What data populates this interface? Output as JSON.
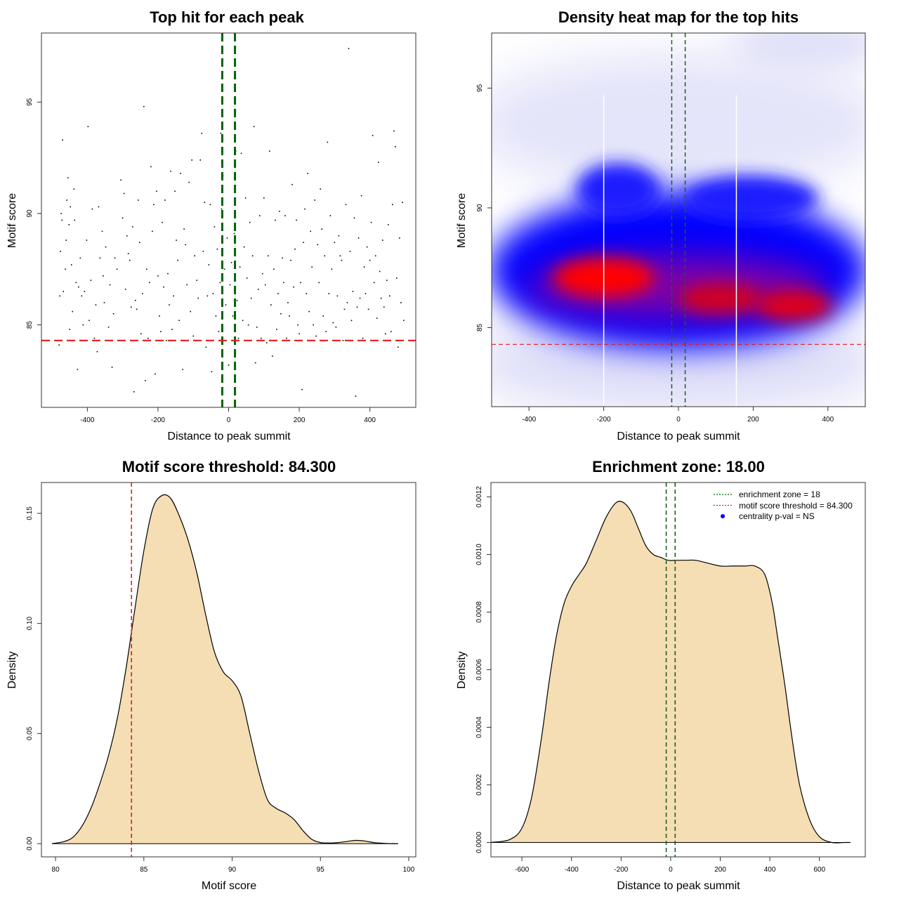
{
  "chart_data": [
    {
      "type": "scatter",
      "title": "Top hit for each peak",
      "xlabel": "Distance to peak summit",
      "ylabel": "Motif score",
      "xlim": [
        -530,
        530
      ],
      "ylim": [
        81.3,
        98.1
      ],
      "xticks": [
        -400,
        -200,
        0,
        200,
        400
      ],
      "yticks": [
        85,
        90,
        95
      ],
      "xtick_labels": [
        "-400",
        "-200",
        "0",
        "200",
        "400"
      ],
      "ytick_labels": [
        "85",
        "90",
        "95"
      ],
      "vlines": [
        -18,
        18
      ],
      "hline": 84.3,
      "points": [
        [
          -480,
          84.1
        ],
        [
          -478,
          86.3
        ],
        [
          -476,
          88.3
        ],
        [
          -474,
          90.0
        ],
        [
          -472,
          89.7
        ],
        [
          -470,
          93.3
        ],
        [
          -468,
          86.5
        ],
        [
          -462,
          87.5
        ],
        [
          -460,
          88.8
        ],
        [
          -458,
          90.6
        ],
        [
          -455,
          91.6
        ],
        [
          -452,
          89.5
        ],
        [
          -450,
          84.8
        ],
        [
          -448,
          90.3
        ],
        [
          -445,
          87.7
        ],
        [
          -442,
          85.6
        ],
        [
          -438,
          91.1
        ],
        [
          -436,
          89.7
        ],
        [
          -432,
          86.9
        ],
        [
          -428,
          83.0
        ],
        [
          -425,
          86.7
        ],
        [
          -420,
          88.0
        ],
        [
          -416,
          86.3
        ],
        [
          -412,
          85.0
        ],
        [
          -408,
          86.5
        ],
        [
          -402,
          88.8
        ],
        [
          -398,
          93.9
        ],
        [
          -395,
          85.2
        ],
        [
          -390,
          87.0
        ],
        [
          -386,
          90.2
        ],
        [
          -380,
          84.4
        ],
        [
          -376,
          85.9
        ],
        [
          -372,
          83.8
        ],
        [
          -368,
          90.3
        ],
        [
          -364,
          88.0
        ],
        [
          -358,
          89.2
        ],
        [
          -355,
          87.2
        ],
        [
          -352,
          86.0
        ],
        [
          -348,
          88.5
        ],
        [
          -340,
          84.9
        ],
        [
          -336,
          86.8
        ],
        [
          -330,
          83.1
        ],
        [
          -326,
          85.5
        ],
        [
          -322,
          88.0
        ],
        [
          -316,
          87.5
        ],
        [
          -310,
          84.3
        ],
        [
          -305,
          91.5
        ],
        [
          -300,
          89.8
        ],
        [
          -296,
          90.9
        ],
        [
          -292,
          86.6
        ],
        [
          -288,
          89.0
        ],
        [
          -284,
          88.2
        ],
        [
          -280,
          87.9
        ],
        [
          -276,
          85.8
        ],
        [
          -272,
          89.4
        ],
        [
          -268,
          82.0
        ],
        [
          -264,
          86.1
        ],
        [
          -260,
          85.7
        ],
        [
          -256,
          90.6
        ],
        [
          -252,
          88.7
        ],
        [
          -248,
          84.6
        ],
        [
          -244,
          86.4
        ],
        [
          -240,
          94.8
        ],
        [
          -236,
          82.5
        ],
        [
          -232,
          87.5
        ],
        [
          -228,
          84.4
        ],
        [
          -224,
          86.9
        ],
        [
          -220,
          92.1
        ],
        [
          -216,
          89.2
        ],
        [
          -212,
          90.4
        ],
        [
          -208,
          82.8
        ],
        [
          -204,
          91.0
        ],
        [
          -200,
          87.2
        ],
        [
          -196,
          85.4
        ],
        [
          -192,
          84.7
        ],
        [
          -188,
          89.6
        ],
        [
          -184,
          86.7
        ],
        [
          -180,
          90.6
        ],
        [
          -176,
          84.3
        ],
        [
          -172,
          87.3
        ],
        [
          -168,
          85.9
        ],
        [
          -164,
          91.9
        ],
        [
          -160,
          84.8
        ],
        [
          -156,
          86.3
        ],
        [
          -152,
          91.0
        ],
        [
          -148,
          88.8
        ],
        [
          -144,
          87.9
        ],
        [
          -140,
          85.2
        ],
        [
          -136,
          91.8
        ],
        [
          -130,
          83.0
        ],
        [
          -126,
          89.3
        ],
        [
          -122,
          88.6
        ],
        [
          -118,
          86.8
        ],
        [
          -112,
          91.4
        ],
        [
          -108,
          85.6
        ],
        [
          -104,
          92.4
        ],
        [
          -100,
          84.5
        ],
        [
          -96,
          88.1
        ],
        [
          -90,
          87.0
        ],
        [
          -86,
          86.2
        ],
        [
          -80,
          92.4
        ],
        [
          -76,
          93.6
        ],
        [
          -72,
          88.3
        ],
        [
          -68,
          90.5
        ],
        [
          -64,
          84.0
        ],
        [
          -60,
          86.3
        ],
        [
          -56,
          87.7
        ],
        [
          -52,
          90.4
        ],
        [
          -48,
          82.9
        ],
        [
          -44,
          86.4
        ],
        [
          -40,
          89.4
        ],
        [
          -36,
          85.4
        ],
        [
          -32,
          88.4
        ],
        [
          -28,
          84.7
        ],
        [
          -24,
          86.9
        ],
        [
          -22,
          93.6
        ],
        [
          -20,
          90.2
        ],
        [
          -16,
          91.7
        ],
        [
          -12,
          87.5
        ],
        [
          -8,
          85.9
        ],
        [
          -4,
          88.9
        ],
        [
          0,
          83.2
        ],
        [
          4,
          86.8
        ],
        [
          8,
          87.8
        ],
        [
          12,
          85.4
        ],
        [
          16,
          89.1
        ],
        [
          20,
          92.8
        ],
        [
          24,
          86.1
        ],
        [
          28,
          84.4
        ],
        [
          32,
          87.6
        ],
        [
          36,
          92.7
        ],
        [
          40,
          85.2
        ],
        [
          44,
          88.5
        ],
        [
          48,
          90.7
        ],
        [
          52,
          87.1
        ],
        [
          56,
          85.0
        ],
        [
          60,
          89.6
        ],
        [
          64,
          86.2
        ],
        [
          68,
          88.1
        ],
        [
          72,
          93.9
        ],
        [
          76,
          83.3
        ],
        [
          80,
          84.9
        ],
        [
          84,
          86.6
        ],
        [
          88,
          89.9
        ],
        [
          92,
          84.4
        ],
        [
          96,
          87.3
        ],
        [
          100,
          90.7
        ],
        [
          104,
          86.8
        ],
        [
          108,
          84.2
        ],
        [
          112,
          88.1
        ],
        [
          116,
          92.8
        ],
        [
          120,
          85.9
        ],
        [
          124,
          83.6
        ],
        [
          128,
          87.5
        ],
        [
          132,
          89.7
        ],
        [
          136,
          84.8
        ],
        [
          140,
          86.4
        ],
        [
          144,
          90.1
        ],
        [
          148,
          85.5
        ],
        [
          152,
          88.0
        ],
        [
          156,
          86.9
        ],
        [
          160,
          89.9
        ],
        [
          164,
          84.4
        ],
        [
          168,
          86.0
        ],
        [
          172,
          85.4
        ],
        [
          176,
          87.9
        ],
        [
          180,
          91.3
        ],
        [
          184,
          86.7
        ],
        [
          188,
          88.4
        ],
        [
          192,
          89.7
        ],
        [
          196,
          85.0
        ],
        [
          200,
          84.6
        ],
        [
          204,
          86.9
        ],
        [
          208,
          82.1
        ],
        [
          212,
          88.7
        ],
        [
          216,
          90.2
        ],
        [
          220,
          86.4
        ],
        [
          224,
          91.8
        ],
        [
          228,
          85.6
        ],
        [
          232,
          89.2
        ],
        [
          236,
          87.6
        ],
        [
          240,
          85.0
        ],
        [
          244,
          90.6
        ],
        [
          248,
          84.5
        ],
        [
          252,
          88.6
        ],
        [
          256,
          86.9
        ],
        [
          260,
          91.1
        ],
        [
          264,
          89.3
        ],
        [
          268,
          85.4
        ],
        [
          272,
          88.1
        ],
        [
          276,
          84.7
        ],
        [
          280,
          93.2
        ],
        [
          284,
          86.4
        ],
        [
          288,
          89.9
        ],
        [
          292,
          87.5
        ],
        [
          296,
          85.1
        ],
        [
          300,
          88.7
        ],
        [
          304,
          84.9
        ],
        [
          308,
          86.3
        ],
        [
          312,
          89.0
        ],
        [
          316,
          88.1
        ],
        [
          320,
          87.9
        ],
        [
          324,
          84.3
        ],
        [
          328,
          85.7
        ],
        [
          332,
          90.4
        ],
        [
          336,
          86.0
        ],
        [
          340,
          97.4
        ],
        [
          344,
          88.3
        ],
        [
          348,
          85.2
        ],
        [
          352,
          86.5
        ],
        [
          356,
          89.8
        ],
        [
          360,
          81.8
        ],
        [
          364,
          85.8
        ],
        [
          368,
          88.9
        ],
        [
          372,
          86.2
        ],
        [
          376,
          90.8
        ],
        [
          380,
          84.4
        ],
        [
          384,
          87.6
        ],
        [
          388,
          86.4
        ],
        [
          392,
          88.5
        ],
        [
          396,
          85.7
        ],
        [
          400,
          87.9
        ],
        [
          404,
          89.6
        ],
        [
          408,
          93.5
        ],
        [
          412,
          86.9
        ],
        [
          416,
          88.1
        ],
        [
          420,
          85.3
        ],
        [
          424,
          92.3
        ],
        [
          428,
          87.4
        ],
        [
          432,
          86.2
        ],
        [
          436,
          88.8
        ],
        [
          440,
          85.8
        ],
        [
          444,
          84.6
        ],
        [
          448,
          87.0
        ],
        [
          452,
          89.5
        ],
        [
          456,
          86.3
        ],
        [
          460,
          84.7
        ],
        [
          464,
          90.4
        ],
        [
          468,
          93.7
        ],
        [
          472,
          93.0
        ],
        [
          476,
          87.1
        ],
        [
          480,
          84.0
        ],
        [
          484,
          88.9
        ],
        [
          488,
          86.0
        ],
        [
          492,
          90.5
        ],
        [
          496,
          85.2
        ]
      ]
    },
    {
      "type": "heatmap",
      "title": "Density heat map for the top hits",
      "xlabel": "Distance to peak summit",
      "ylabel": "Motif score",
      "xlim": [
        -500,
        500
      ],
      "ylim": [
        81.7,
        97.3
      ],
      "xticks": [
        -400,
        -200,
        0,
        200,
        400
      ],
      "yticks": [
        85,
        90,
        95
      ],
      "xtick_labels": [
        "-400",
        "-200",
        "0",
        "200",
        "400"
      ],
      "ytick_labels": [
        "85",
        "90",
        "95"
      ],
      "vlines": [
        -18,
        18
      ],
      "hline": 84.3,
      "white_lines": [
        -200,
        155
      ]
    },
    {
      "type": "area",
      "title": "Motif score threshold: 84.300",
      "xlabel": "Motif score",
      "ylabel": "Density",
      "xlim": [
        79.2,
        100.4
      ],
      "ylim": [
        -0.006,
        0.164
      ],
      "xticks": [
        80,
        85,
        90,
        95,
        100
      ],
      "yticks": [
        0.0,
        0.05,
        0.1,
        0.15
      ],
      "xtick_labels": [
        "80",
        "85",
        "90",
        "95",
        "100"
      ],
      "ytick_labels": [
        "0.00",
        "0.05",
        "0.10",
        "0.15"
      ],
      "fill": "#F5DEB3",
      "vline": 84.3,
      "x": [
        79.8,
        80.5,
        81.0,
        81.5,
        82.0,
        82.5,
        83.0,
        83.5,
        84.0,
        84.5,
        85.0,
        85.5,
        86.0,
        86.5,
        87.0,
        87.5,
        88.0,
        88.5,
        89.0,
        89.5,
        90.0,
        90.5,
        91.0,
        91.5,
        92.0,
        92.5,
        93.0,
        93.5,
        94.0,
        94.5,
        95.0,
        95.5,
        96.0,
        96.5,
        97.0,
        97.5,
        98.0,
        98.5,
        99.0,
        99.4
      ],
      "y": [
        0.0,
        0.001,
        0.003,
        0.008,
        0.016,
        0.027,
        0.04,
        0.057,
        0.08,
        0.107,
        0.133,
        0.152,
        0.158,
        0.157,
        0.149,
        0.138,
        0.123,
        0.104,
        0.087,
        0.078,
        0.074,
        0.067,
        0.05,
        0.033,
        0.02,
        0.016,
        0.014,
        0.011,
        0.006,
        0.002,
        0.0005,
        0.0003,
        0.0005,
        0.001,
        0.0015,
        0.0012,
        0.0005,
        0.0002,
        0.0,
        0.0
      ]
    },
    {
      "type": "area",
      "title": "Enrichment zone: 18.00",
      "xlabel": "Distance to peak summit",
      "ylabel": "Density",
      "xlim": [
        -725,
        785
      ],
      "ylim": [
        -5e-05,
        0.00125
      ],
      "xticks": [
        -600,
        -400,
        -200,
        0,
        200,
        400,
        600
      ],
      "yticks": [
        0.0,
        0.0002,
        0.0004,
        0.0006,
        0.0008,
        0.001,
        0.0012
      ],
      "xtick_labels": [
        "-600",
        "-400",
        "-200",
        "0",
        "200",
        "400",
        "600"
      ],
      "ytick_labels": [
        "0.0000",
        "0.0002",
        "0.0004",
        "0.0006",
        "0.0008",
        "0.0010",
        "0.0012"
      ],
      "fill": "#F5DEB3",
      "vlines": [
        -18,
        18
      ],
      "x": [
        -725,
        -650,
        -600,
        -560,
        -520,
        -490,
        -460,
        -430,
        -400,
        -370,
        -340,
        -300,
        -260,
        -220,
        -190,
        -160,
        -130,
        -100,
        -70,
        -40,
        -10,
        20,
        60,
        100,
        150,
        200,
        250,
        300,
        340,
        380,
        410,
        430,
        460,
        490,
        520,
        560,
        600,
        650,
        700,
        725
      ],
      "y": [
        0.0,
        1e-05,
        5e-05,
        0.00016,
        0.00037,
        0.00056,
        0.00072,
        0.00083,
        0.00089,
        0.00093,
        0.00097,
        0.00105,
        0.00113,
        0.00118,
        0.00118,
        0.00115,
        0.00109,
        0.00103,
        0.001,
        0.00099,
        0.00098,
        0.00098,
        0.00098,
        0.00098,
        0.00097,
        0.00096,
        0.00096,
        0.00096,
        0.00096,
        0.00093,
        0.00083,
        0.00072,
        0.00055,
        0.00036,
        0.0002,
        8e-05,
        2e-05,
        0.0,
        0.0,
        0.0
      ],
      "legend": {
        "position": "top-right",
        "items": [
          {
            "label": "enrichment zone = 18",
            "color": "#006400",
            "style": "dotted"
          },
          {
            "label": "motif score threshold = 84.300",
            "color": "#E41A1C",
            "style": "dotted"
          },
          {
            "label": "centrality p-val = NS",
            "color": "#0000FF",
            "style": "point"
          }
        ]
      }
    }
  ]
}
